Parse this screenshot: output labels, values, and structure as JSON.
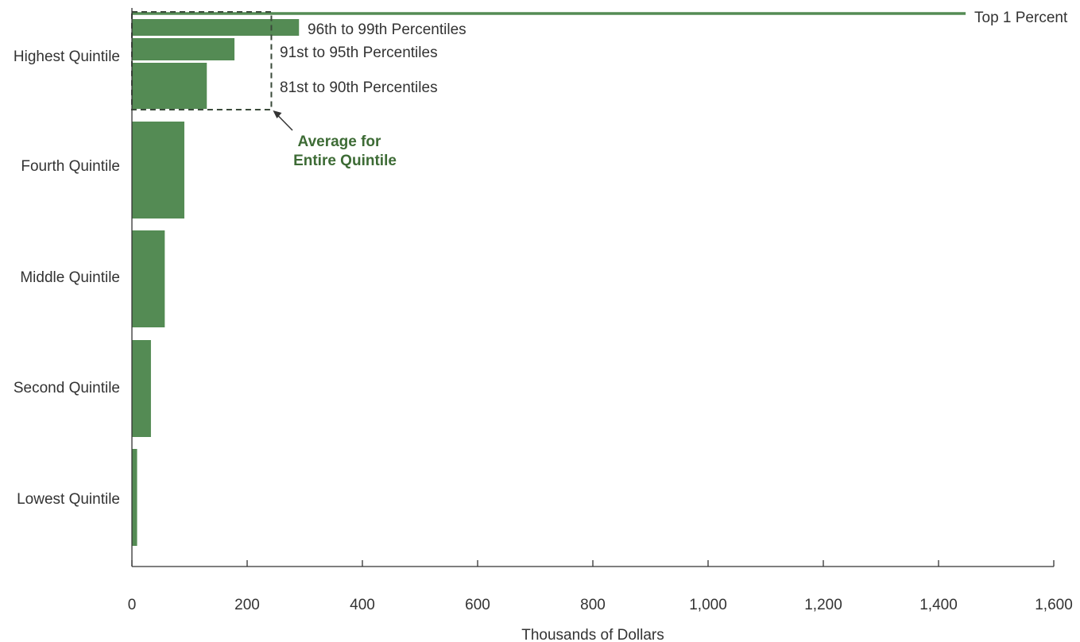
{
  "colors": {
    "bar": "#548b54",
    "avg_text": "#3d6b35",
    "axis": "#333333",
    "text": "#333333",
    "dashed": "#3a4a3a"
  },
  "chart_data": {
    "type": "bar",
    "orientation": "horizontal",
    "title": "",
    "xlabel": "Thousands of Dollars",
    "ylabel": "",
    "xlim": [
      0,
      1600
    ],
    "xticks": [
      0,
      200,
      400,
      600,
      800,
      1000,
      1200,
      1400,
      1600
    ],
    "xtick_labels": [
      "0",
      "200",
      "400",
      "600",
      "800",
      "1,000",
      "1,200",
      "1,400",
      "1,600"
    ],
    "categories": [
      "Highest Quintile",
      "Fourth Quintile",
      "Middle Quintile",
      "Second Quintile",
      "Lowest Quintile"
    ],
    "values": [
      242,
      91,
      57,
      33,
      9
    ],
    "highest_quintile_breakdown": [
      {
        "name": "Top 1 Percent",
        "value": 1447
      },
      {
        "name": "96th to 99th Percentiles",
        "value": 290
      },
      {
        "name": "91st to 95th Percentiles",
        "value": 178
      },
      {
        "name": "81st to 90th Percentiles",
        "value": 130
      }
    ],
    "annotation": {
      "line1": "Average for",
      "line2": "Entire Quintile",
      "value": 242
    },
    "grid": false,
    "legend": "none"
  }
}
